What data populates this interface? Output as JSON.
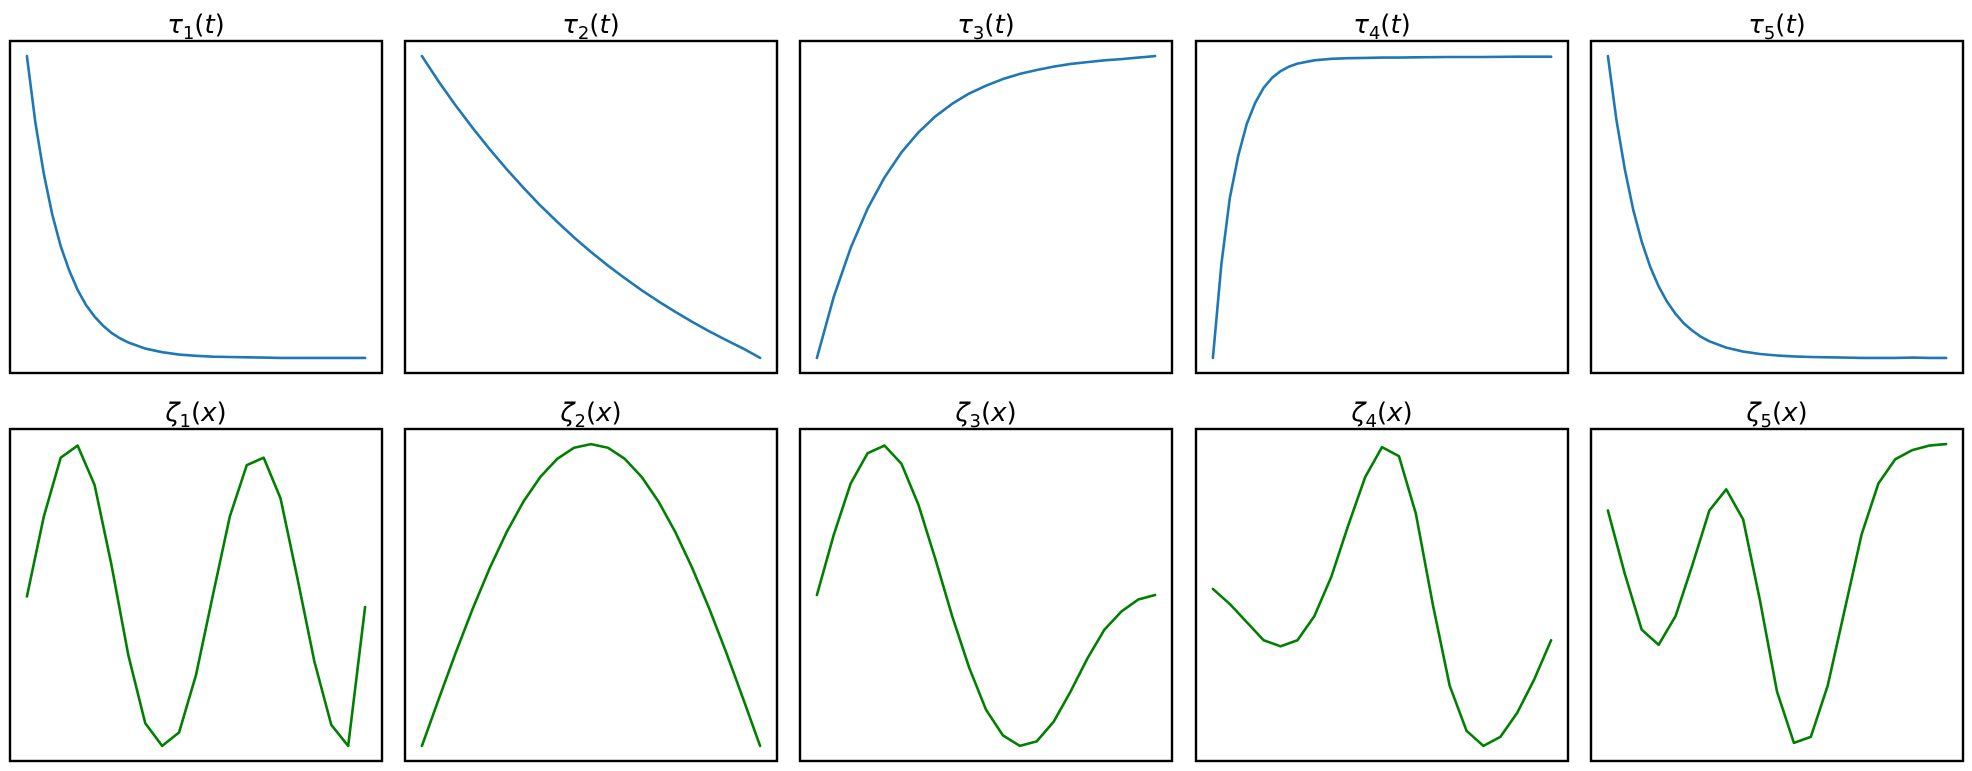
{
  "colors": {
    "tau_line": "#1f77b4",
    "zeta_line": "#008000",
    "frame": "#000000",
    "background": "#ffffff"
  },
  "chart_data": [
    {
      "type": "line",
      "title": {
        "symbol": "τ",
        "subscript": "1",
        "arg": "t"
      },
      "xlabel": "",
      "ylabel": "",
      "ticks": "none",
      "grid": false,
      "legend": "none",
      "xlim": [
        -0.05,
        1.05
      ],
      "ylim": [
        -0.05,
        1.05
      ],
      "series": [
        {
          "color": "#1f77b4",
          "x": [
            0.0,
            0.025,
            0.05,
            0.075,
            0.1,
            0.125,
            0.15,
            0.175,
            0.2,
            0.225,
            0.25,
            0.275,
            0.3,
            0.35,
            0.4,
            0.45,
            0.5,
            0.55,
            0.6,
            0.65,
            0.7,
            0.75,
            0.8,
            0.85,
            0.9,
            0.95,
            1.0
          ],
          "y": [
            1.0,
            0.78,
            0.61,
            0.475,
            0.37,
            0.29,
            0.225,
            0.175,
            0.137,
            0.107,
            0.083,
            0.065,
            0.051,
            0.031,
            0.019,
            0.011,
            0.007,
            0.004,
            0.003,
            0.002,
            0.001,
            0.0,
            0.0,
            0.0,
            0.0,
            0.0,
            0.0
          ]
        }
      ]
    },
    {
      "type": "line",
      "title": {
        "symbol": "τ",
        "subscript": "2",
        "arg": "t"
      },
      "xlabel": "",
      "ylabel": "",
      "ticks": "none",
      "grid": false,
      "legend": "none",
      "xlim": [
        -0.05,
        1.05
      ],
      "ylim": [
        -0.05,
        1.05
      ],
      "series": [
        {
          "color": "#1f77b4",
          "x": [
            0.0,
            0.05,
            0.1,
            0.15,
            0.2,
            0.25,
            0.3,
            0.35,
            0.4,
            0.45,
            0.5,
            0.55,
            0.6,
            0.65,
            0.7,
            0.75,
            0.8,
            0.85,
            0.9,
            0.95,
            1.0
          ],
          "y": [
            1.0,
            0.915,
            0.836,
            0.762,
            0.692,
            0.626,
            0.564,
            0.505,
            0.451,
            0.399,
            0.351,
            0.306,
            0.264,
            0.224,
            0.187,
            0.152,
            0.119,
            0.088,
            0.059,
            0.031,
            0.0
          ]
        }
      ]
    },
    {
      "type": "line",
      "title": {
        "symbol": "τ",
        "subscript": "3",
        "arg": "t"
      },
      "xlabel": "",
      "ylabel": "",
      "ticks": "none",
      "grid": false,
      "legend": "none",
      "xlim": [
        -0.05,
        1.05
      ],
      "ylim": [
        -0.05,
        1.05
      ],
      "series": [
        {
          "color": "#1f77b4",
          "x": [
            0.0,
            0.05,
            0.1,
            0.15,
            0.2,
            0.25,
            0.3,
            0.35,
            0.4,
            0.45,
            0.5,
            0.55,
            0.6,
            0.65,
            0.7,
            0.75,
            0.8,
            0.85,
            0.9,
            0.95,
            1.0
          ],
          "y": [
            0.0,
            0.203,
            0.365,
            0.495,
            0.598,
            0.681,
            0.747,
            0.8,
            0.842,
            0.876,
            0.902,
            0.924,
            0.941,
            0.954,
            0.965,
            0.974,
            0.98,
            0.986,
            0.99,
            0.995,
            1.0
          ]
        }
      ]
    },
    {
      "type": "line",
      "title": {
        "symbol": "τ",
        "subscript": "4",
        "arg": "t"
      },
      "xlabel": "",
      "ylabel": "",
      "ticks": "none",
      "grid": false,
      "legend": "none",
      "xlim": [
        -0.05,
        1.05
      ],
      "ylim": [
        -0.05,
        1.05
      ],
      "series": [
        {
          "color": "#1f77b4",
          "x": [
            0.0,
            0.025,
            0.05,
            0.075,
            0.1,
            0.125,
            0.15,
            0.175,
            0.2,
            0.225,
            0.25,
            0.3,
            0.35,
            0.4,
            0.45,
            0.5,
            0.55,
            0.6,
            0.7,
            0.8,
            0.9,
            1.0
          ],
          "y": [
            0.0,
            0.31,
            0.53,
            0.67,
            0.775,
            0.845,
            0.895,
            0.928,
            0.95,
            0.965,
            0.975,
            0.986,
            0.991,
            0.993,
            0.994,
            0.995,
            0.995,
            0.996,
            0.997,
            0.997,
            0.998,
            0.998
          ]
        }
      ]
    },
    {
      "type": "line",
      "title": {
        "symbol": "τ",
        "subscript": "5",
        "arg": "t"
      },
      "xlabel": "",
      "ylabel": "",
      "ticks": "none",
      "grid": false,
      "legend": "none",
      "xlim": [
        -0.05,
        1.05
      ],
      "ylim": [
        -0.05,
        1.05
      ],
      "series": [
        {
          "color": "#1f77b4",
          "x": [
            0.0,
            0.025,
            0.05,
            0.075,
            0.1,
            0.125,
            0.15,
            0.175,
            0.2,
            0.225,
            0.25,
            0.275,
            0.3,
            0.35,
            0.4,
            0.45,
            0.5,
            0.55,
            0.6,
            0.65,
            0.7,
            0.75,
            0.8,
            0.85,
            0.9,
            0.95,
            1.0
          ],
          "y": [
            1.0,
            0.79,
            0.625,
            0.49,
            0.385,
            0.302,
            0.237,
            0.186,
            0.146,
            0.114,
            0.09,
            0.07,
            0.055,
            0.034,
            0.021,
            0.013,
            0.008,
            0.005,
            0.003,
            0.002,
            0.001,
            0.0,
            0.0,
            0.0,
            0.001,
            0.0,
            0.0
          ]
        }
      ]
    },
    {
      "type": "line",
      "title": {
        "symbol": "ζ",
        "subscript": "1",
        "arg": "x"
      },
      "xlabel": "",
      "ylabel": "",
      "ticks": "none",
      "grid": false,
      "legend": "none",
      "xlim": [
        -0.05,
        1.05
      ],
      "ylim": [
        -0.05,
        1.05
      ],
      "series": [
        {
          "color": "#008000",
          "x": [
            0.0,
            0.05,
            0.1,
            0.15,
            0.2,
            0.25,
            0.3,
            0.35,
            0.4,
            0.45,
            0.5,
            0.55,
            0.6,
            0.65,
            0.7,
            0.75,
            0.8,
            0.85,
            0.9,
            0.95,
            1.0
          ],
          "y": [
            0.495,
            0.76,
            0.955,
            0.995,
            0.865,
            0.6,
            0.3,
            0.075,
            0.0,
            0.045,
            0.235,
            0.5,
            0.76,
            0.93,
            0.955,
            0.82,
            0.555,
            0.28,
            0.07,
            0.0,
            0.46
          ]
        }
      ]
    },
    {
      "type": "line",
      "title": {
        "symbol": "ζ",
        "subscript": "2",
        "arg": "x"
      },
      "xlabel": "",
      "ylabel": "",
      "ticks": "none",
      "grid": false,
      "legend": "none",
      "xlim": [
        -0.05,
        1.05
      ],
      "ylim": [
        -0.05,
        1.05
      ],
      "series": [
        {
          "color": "#008000",
          "x": [
            0.0,
            0.05,
            0.1,
            0.15,
            0.2,
            0.25,
            0.3,
            0.35,
            0.4,
            0.45,
            0.5,
            0.55,
            0.6,
            0.65,
            0.7,
            0.75,
            0.8,
            0.85,
            0.9,
            0.95,
            1.0
          ],
          "y": [
            0.0,
            0.156,
            0.309,
            0.454,
            0.588,
            0.707,
            0.809,
            0.891,
            0.951,
            0.988,
            1.0,
            0.988,
            0.951,
            0.891,
            0.809,
            0.707,
            0.588,
            0.454,
            0.309,
            0.156,
            0.0
          ]
        }
      ]
    },
    {
      "type": "line",
      "title": {
        "symbol": "ζ",
        "subscript": "3",
        "arg": "x"
      },
      "xlabel": "",
      "ylabel": "",
      "ticks": "none",
      "grid": false,
      "legend": "none",
      "xlim": [
        -0.05,
        1.05
      ],
      "ylim": [
        -0.05,
        1.05
      ],
      "series": [
        {
          "color": "#008000",
          "x": [
            0.0,
            0.05,
            0.1,
            0.15,
            0.2,
            0.25,
            0.3,
            0.35,
            0.4,
            0.45,
            0.5,
            0.55,
            0.6,
            0.65,
            0.7,
            0.75,
            0.8,
            0.85,
            0.9,
            0.95,
            1.0
          ],
          "y": [
            0.5,
            0.7,
            0.87,
            0.97,
            0.995,
            0.935,
            0.8,
            0.62,
            0.43,
            0.26,
            0.12,
            0.035,
            0.0,
            0.015,
            0.08,
            0.18,
            0.29,
            0.385,
            0.445,
            0.485,
            0.5
          ]
        }
      ]
    },
    {
      "type": "line",
      "title": {
        "symbol": "ζ",
        "subscript": "4",
        "arg": "x"
      },
      "xlabel": "",
      "ylabel": "",
      "ticks": "none",
      "grid": false,
      "legend": "none",
      "xlim": [
        -0.05,
        1.05
      ],
      "ylim": [
        -0.05,
        1.05
      ],
      "series": [
        {
          "color": "#008000",
          "x": [
            0.0,
            0.05,
            0.1,
            0.15,
            0.2,
            0.25,
            0.3,
            0.35,
            0.4,
            0.45,
            0.5,
            0.55,
            0.6,
            0.65,
            0.7,
            0.75,
            0.8,
            0.85,
            0.9,
            0.95,
            1.0
          ],
          "y": [
            0.52,
            0.47,
            0.41,
            0.35,
            0.33,
            0.35,
            0.43,
            0.56,
            0.73,
            0.89,
            0.99,
            0.96,
            0.77,
            0.47,
            0.2,
            0.05,
            0.0,
            0.03,
            0.11,
            0.22,
            0.35
          ]
        }
      ]
    },
    {
      "type": "line",
      "title": {
        "symbol": "ζ",
        "subscript": "5",
        "arg": "x"
      },
      "xlabel": "",
      "ylabel": "",
      "ticks": "none",
      "grid": false,
      "legend": "none",
      "xlim": [
        -0.05,
        1.05
      ],
      "ylim": [
        -0.05,
        1.05
      ],
      "series": [
        {
          "color": "#008000",
          "x": [
            0.0,
            0.05,
            0.1,
            0.15,
            0.2,
            0.25,
            0.3,
            0.35,
            0.4,
            0.45,
            0.5,
            0.55,
            0.6,
            0.65,
            0.7,
            0.75,
            0.8,
            0.85,
            0.9,
            0.95,
            1.0
          ],
          "y": [
            0.78,
            0.57,
            0.385,
            0.335,
            0.43,
            0.6,
            0.78,
            0.85,
            0.75,
            0.48,
            0.18,
            0.01,
            0.03,
            0.2,
            0.45,
            0.7,
            0.87,
            0.95,
            0.98,
            0.995,
            1.0
          ]
        }
      ]
    }
  ]
}
